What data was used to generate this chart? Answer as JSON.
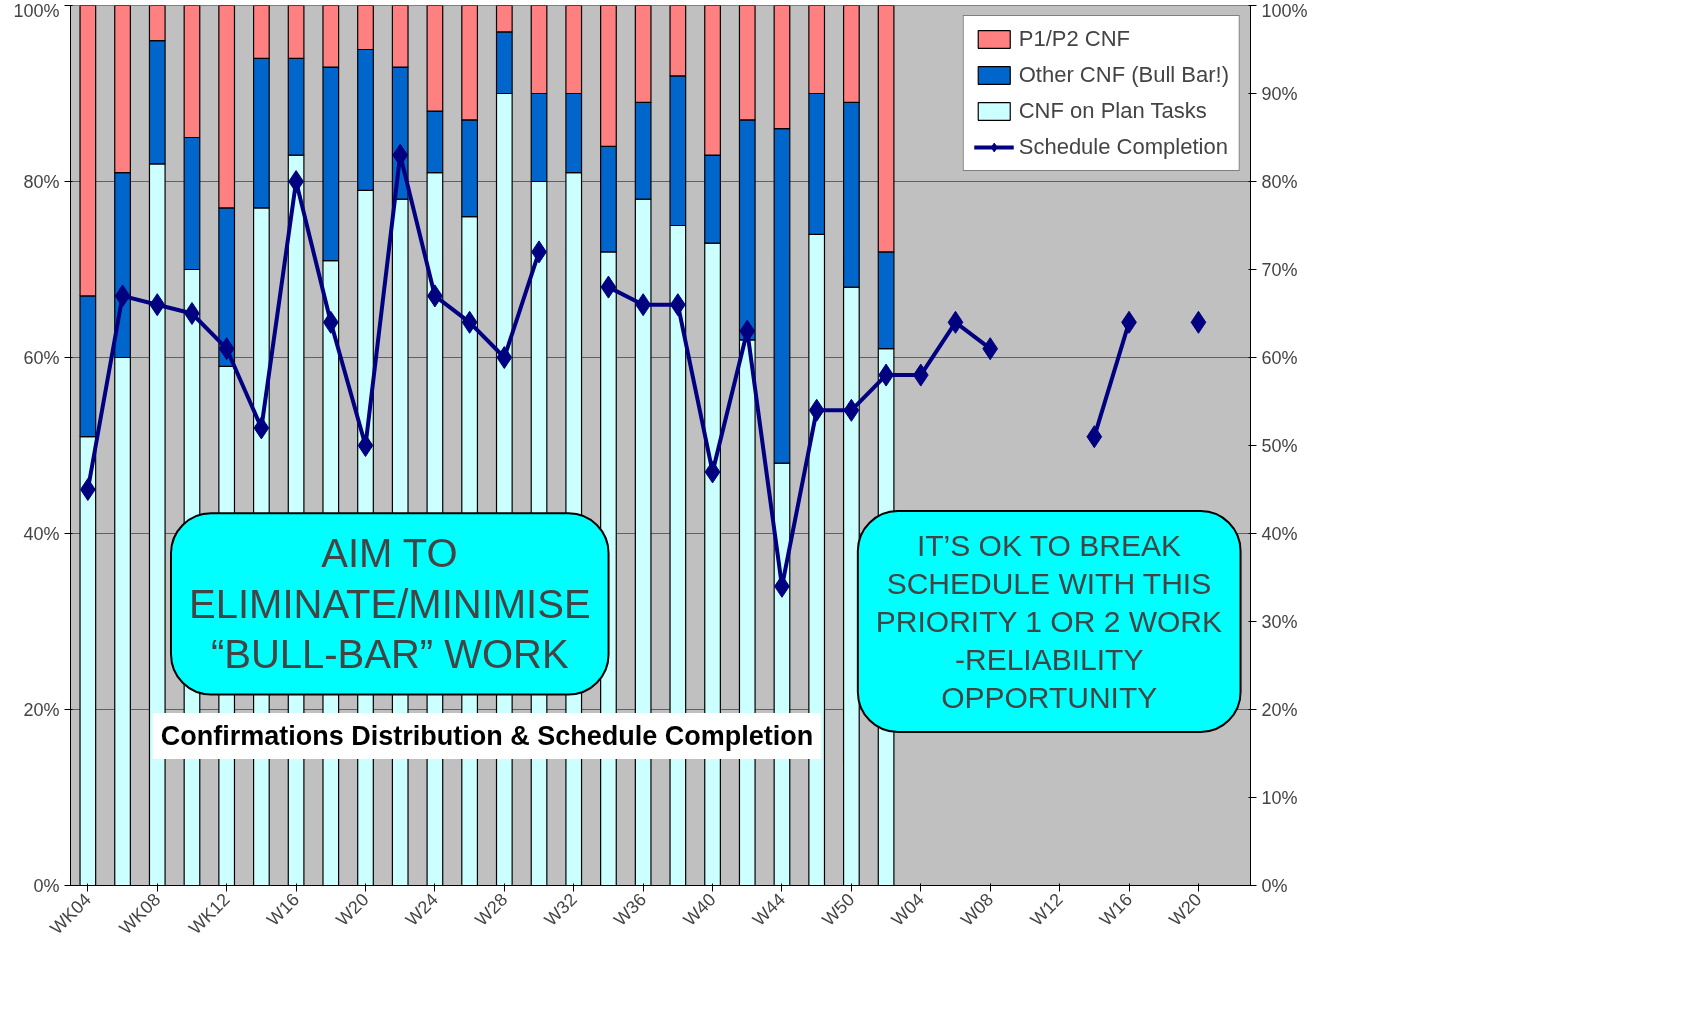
{
  "chart_data": {
    "type": "bar",
    "stacked": true,
    "title": "Confirmations Distribution & Schedule Completion",
    "categories": [
      "WK04",
      null,
      "WK08",
      null,
      "WK12",
      null,
      "W16",
      null,
      "W20",
      null,
      "W24",
      null,
      "W28",
      null,
      "W32",
      null,
      "W36",
      null,
      "W40",
      null,
      "W44",
      null,
      "W50",
      null,
      "W04",
      null,
      "W08",
      null,
      "W12",
      null,
      "W16",
      null,
      "W20",
      null
    ],
    "series": [
      {
        "name": "CNF on Plan Tasks",
        "color": "#ccffff",
        "values": [
          51,
          60,
          82,
          70,
          59,
          77,
          83,
          71,
          79,
          78,
          81,
          76,
          90,
          80,
          81,
          72,
          78,
          75,
          73,
          62,
          48,
          74,
          68,
          61,
          null,
          null,
          null,
          null,
          null,
          null,
          null,
          null,
          null,
          null
        ]
      },
      {
        "name": "Other CNF (Bull Bar!)",
        "color": "#0066cc",
        "values": [
          16,
          21,
          14,
          15,
          18,
          17,
          11,
          22,
          16,
          15,
          7,
          11,
          7,
          10,
          9,
          12,
          11,
          17,
          10,
          25,
          38,
          16,
          21,
          11,
          null,
          null,
          null,
          null,
          null,
          null,
          null,
          null,
          null,
          null
        ]
      },
      {
        "name": "P1/P2 CNF",
        "color": "#ff8080",
        "values": [
          33,
          19,
          4,
          15,
          23,
          6,
          6,
          7,
          5,
          7,
          12,
          13,
          3,
          10,
          10,
          16,
          11,
          8,
          17,
          13,
          14,
          10,
          11,
          28,
          null,
          null,
          null,
          null,
          null,
          null,
          null,
          null,
          null,
          null
        ]
      },
      {
        "name": "Schedule Completion",
        "type": "line",
        "color": "#000080",
        "values": [
          45,
          67,
          66,
          65,
          61,
          52,
          80,
          64,
          50,
          83,
          67,
          64,
          60,
          72,
          null,
          68,
          66,
          66,
          47,
          63,
          34,
          54,
          54,
          58,
          58,
          64,
          61,
          null,
          null,
          51,
          64,
          null,
          64,
          null
        ]
      }
    ],
    "ylim": [
      0,
      100
    ],
    "yticks": [
      {
        "value": 0,
        "label": "0%"
      },
      {
        "value": 20,
        "label": "20%"
      },
      {
        "value": 40,
        "label": "40%"
      },
      {
        "value": 60,
        "label": "60%"
      },
      {
        "value": 80,
        "label": "80%"
      },
      {
        "value": 100,
        "label": "100%"
      }
    ],
    "y2lim": [
      0,
      100
    ],
    "y2ticks": [
      {
        "value": 0,
        "label": "0%"
      },
      {
        "value": 10,
        "label": "10%"
      },
      {
        "value": 20,
        "label": "20%"
      },
      {
        "value": 30,
        "label": "30%"
      },
      {
        "value": 40,
        "label": "40%"
      },
      {
        "value": 50,
        "label": "50%"
      },
      {
        "value": 60,
        "label": "60%"
      },
      {
        "value": 70,
        "label": "70%"
      },
      {
        "value": 80,
        "label": "80%"
      },
      {
        "value": 90,
        "label": "90%"
      },
      {
        "value": 100,
        "label": "100%"
      }
    ],
    "grid": "y",
    "legend": "top right",
    "marker": "diamond",
    "annotations": [
      "AIM TO\nELIMINATE/MINIMISE\n“BULL-BAR” WORK",
      "IT’S OK TO BREAK\nSCHEDULE WITH THIS\nPRIORITY 1 OR 2 WORK\n-RELIABILITY\nOPPORTUNITY"
    ]
  }
}
